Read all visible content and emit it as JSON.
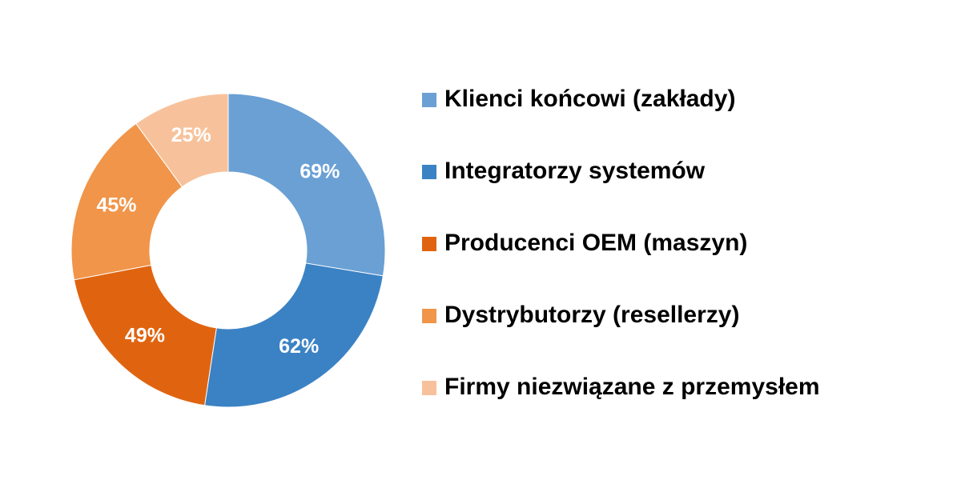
{
  "chart_data": {
    "type": "donut",
    "categories": [
      "Klienci końcowi (zakłady)",
      "Integratorzy systemów",
      "Producenci OEM (maszyn)",
      "Dystrybutorzy (resellerzy)",
      "Firmy niezwiązane z przemysłem"
    ],
    "values": [
      69,
      62,
      49,
      45,
      25
    ],
    "value_labels": [
      "69%",
      "62%",
      "49%",
      "45%",
      "25%"
    ],
    "colors": [
      "#6aa0d4",
      "#3b82c4",
      "#e06410",
      "#f0954a",
      "#f7c29b"
    ],
    "legend": "right"
  }
}
